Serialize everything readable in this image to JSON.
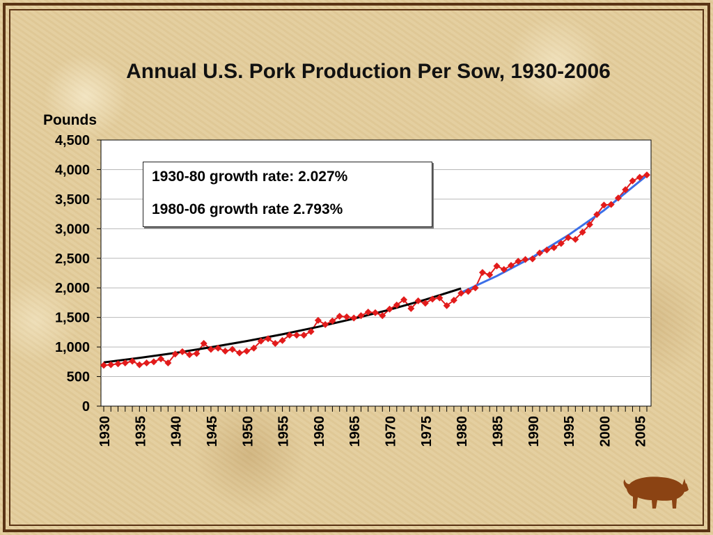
{
  "chart_data": {
    "type": "line",
    "title": "Annual U.S. Pork Production Per Sow, 1930-2006",
    "ylabel": "Pounds",
    "xlabel": "",
    "xlim": [
      1930,
      2006
    ],
    "ylim": [
      0,
      4500
    ],
    "y_ticks": [
      0,
      500,
      1000,
      1500,
      2000,
      2500,
      3000,
      3500,
      4000,
      4500
    ],
    "y_tick_labels": [
      "0",
      "500",
      "1,000",
      "1,500",
      "2,000",
      "2,500",
      "3,000",
      "3,500",
      "4,000",
      "4,500"
    ],
    "x_tick_labels": [
      "1930",
      "1935",
      "1940",
      "1945",
      "1950",
      "1955",
      "1960",
      "1965",
      "1970",
      "1975",
      "1980",
      "1985",
      "1990",
      "1995",
      "2000",
      "2005"
    ],
    "grid": true,
    "annotations": [
      "1930-80 growth rate: 2.027%",
      "1980-06 growth rate 2.793%"
    ],
    "series": [
      {
        "x": [
          1930,
          1931,
          1932,
          1933,
          1934,
          1935,
          1936,
          1937,
          1938,
          1939,
          1940,
          1941,
          1942,
          1943,
          1944,
          1945,
          1946,
          1947,
          1948,
          1949,
          1950,
          1951,
          1952,
          1953,
          1954,
          1955,
          1956,
          1957,
          1958,
          1959,
          1960,
          1961,
          1962,
          1963,
          1964,
          1965,
          1966,
          1967,
          1968,
          1969,
          1970,
          1971,
          1972,
          1973,
          1974,
          1975,
          1976,
          1977,
          1978,
          1979,
          1980,
          1981,
          1982,
          1983,
          1984,
          1985,
          1986,
          1987,
          1988,
          1989,
          1990,
          1991,
          1992,
          1993,
          1994,
          1995,
          1996,
          1997,
          1998,
          1999,
          2000,
          2001,
          2002,
          2003,
          2004,
          2005,
          2006
        ],
        "values": [
          690,
          700,
          715,
          730,
          760,
          700,
          730,
          750,
          800,
          730,
          880,
          920,
          870,
          890,
          1060,
          960,
          980,
          930,
          960,
          900,
          930,
          980,
          1100,
          1140,
          1060,
          1110,
          1200,
          1200,
          1200,
          1260,
          1450,
          1380,
          1440,
          1520,
          1510,
          1490,
          1530,
          1590,
          1580,
          1530,
          1640,
          1710,
          1800,
          1650,
          1780,
          1740,
          1810,
          1830,
          1700,
          1790,
          1910,
          1940,
          2000,
          2260,
          2220,
          2370,
          2310,
          2380,
          2450,
          2480,
          2490,
          2590,
          2640,
          2680,
          2750,
          2850,
          2820,
          2940,
          3070,
          3240,
          3400,
          3410,
          3520,
          3660,
          3810,
          3870,
          3910
        ],
        "color": "#e21b1b"
      },
      {
        "x": [
          1930,
          1935,
          1940,
          1945,
          1950,
          1955,
          1960,
          1965,
          1970,
          1975,
          1980
        ],
        "values": [
          740,
          815,
          900,
          995,
          1100,
          1215,
          1340,
          1480,
          1630,
          1800,
          1990
        ],
        "color": "#000000"
      },
      {
        "x": [
          1980,
          1985,
          1990,
          1995,
          2000,
          2006
        ],
        "values": [
          1920,
          2200,
          2520,
          2890,
          3310,
          3900
        ],
        "color": "#3b6fe8"
      }
    ]
  }
}
